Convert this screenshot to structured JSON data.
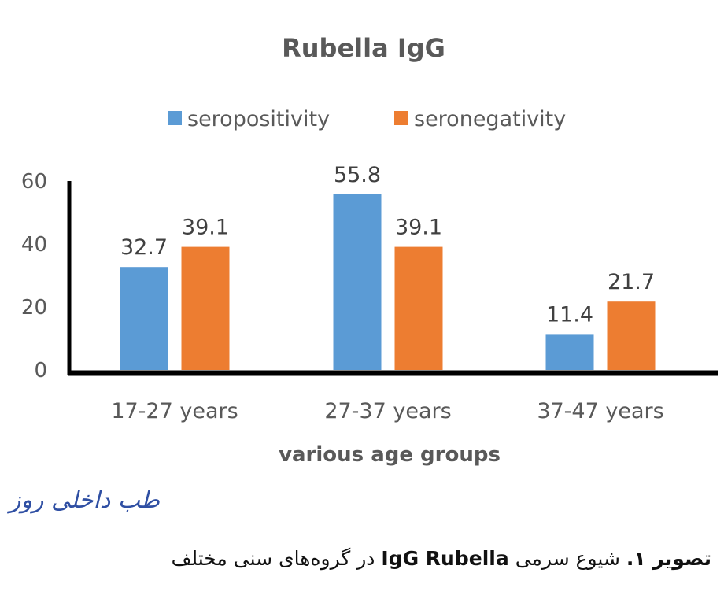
{
  "chart_data": {
    "type": "bar",
    "title": "Rubella IgG",
    "xlabel": "various age groups",
    "ylabel": "",
    "categories": [
      "17-27 years",
      "27-37 years",
      "37-47 years"
    ],
    "series": [
      {
        "name": "seropositivity",
        "values": [
          32.7,
          55.8,
          11.4
        ],
        "color": "#5b9bd5"
      },
      {
        "name": "seronegativity",
        "values": [
          39.1,
          39.1,
          21.7
        ],
        "color": "#ed7d31"
      }
    ],
    "ylim": [
      0,
      60
    ],
    "yticks": [
      0,
      20,
      40,
      60
    ],
    "grid": false,
    "legend": "top"
  },
  "watermark": {
    "text": "طب داخلی روز"
  },
  "caption": {
    "label": "تصویر ۱.",
    "text_part1": "شیوع سرمی",
    "bold_term": "IgG Rubella",
    "text_part2": "در گروه‌های سنی مختلف"
  },
  "colors": {
    "axis": "#000000",
    "text": "#595959"
  }
}
